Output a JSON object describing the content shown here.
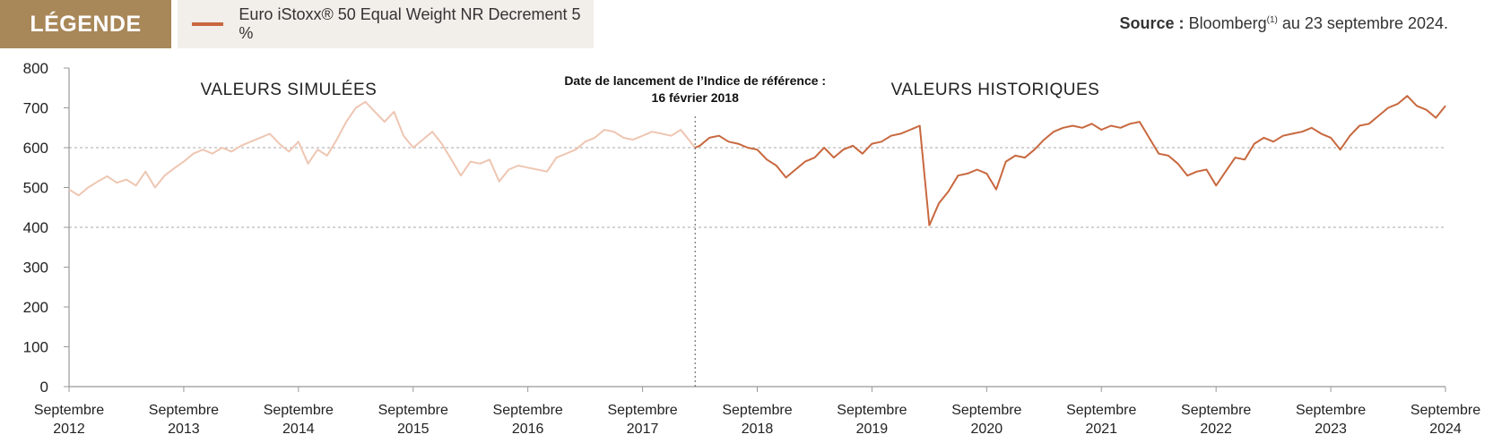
{
  "legend": {
    "heading": "LÉGENDE",
    "series_label": "Euro iStoxx® 50 Equal Weight NR Decrement 5 %"
  },
  "source": {
    "label": "Source :",
    "text": "Bloomberg",
    "sup": "(1)",
    "suffix": " au 23 septembre 2024."
  },
  "colors": {
    "legend_head": "#a88758",
    "historical": "#c8683f",
    "simulated": "#eec6b2",
    "grid": "#aaaaaa"
  },
  "chart_data": {
    "type": "line",
    "title": "",
    "xlabel": "",
    "ylabel": "",
    "ylim": [
      0,
      800
    ],
    "yticks": [
      0,
      100,
      200,
      300,
      400,
      500,
      600,
      700,
      800
    ],
    "grid": "horizontal dashed at 400 and 600",
    "x_range": [
      "2012-09",
      "2024-09"
    ],
    "xticks": [
      {
        "line1": "Septembre",
        "line2": "2012",
        "x": "2012-09"
      },
      {
        "line1": "Septembre",
        "line2": "2013",
        "x": "2013-09"
      },
      {
        "line1": "Septembre",
        "line2": "2014",
        "x": "2014-09"
      },
      {
        "line1": "Septembre",
        "line2": "2015",
        "x": "2015-09"
      },
      {
        "line1": "Septembre",
        "line2": "2016",
        "x": "2016-09"
      },
      {
        "line1": "Septembre",
        "line2": "2017",
        "x": "2017-09"
      },
      {
        "line1": "Septembre",
        "line2": "2018",
        "x": "2018-09"
      },
      {
        "line1": "Septembre",
        "line2": "2019",
        "x": "2019-09"
      },
      {
        "line1": "Septembre",
        "line2": "2020",
        "x": "2020-09"
      },
      {
        "line1": "Septembre",
        "line2": "2021",
        "x": "2021-09"
      },
      {
        "line1": "Septembre",
        "line2": "2022",
        "x": "2022-09"
      },
      {
        "line1": "Septembre",
        "line2": "2023",
        "x": "2023-09"
      },
      {
        "line1": "Septembre",
        "line2": "2024",
        "x": "2024-09"
      }
    ],
    "section_labels": {
      "simulated": "VALEURS SIMULÉES",
      "historical": "VALEURS HISTORIQUES"
    },
    "annotation": {
      "line1": "Date de lancement de l’Indice de référence :",
      "line2": "16 février 2018",
      "x": "2018-02-16"
    },
    "series": [
      {
        "type": "simulated",
        "points": [
          [
            "2012-09",
            495
          ],
          [
            "2012-10",
            480
          ],
          [
            "2012-11",
            500
          ],
          [
            "2012-12",
            515
          ],
          [
            "2013-01",
            528
          ],
          [
            "2013-02",
            512
          ],
          [
            "2013-03",
            520
          ],
          [
            "2013-04",
            505
          ],
          [
            "2013-05",
            540
          ],
          [
            "2013-06",
            500
          ],
          [
            "2013-07",
            530
          ],
          [
            "2013-08",
            548
          ],
          [
            "2013-09",
            565
          ],
          [
            "2013-10",
            585
          ],
          [
            "2013-11",
            595
          ],
          [
            "2013-12",
            585
          ],
          [
            "2014-01",
            600
          ],
          [
            "2014-02",
            590
          ],
          [
            "2014-03",
            605
          ],
          [
            "2014-04",
            615
          ],
          [
            "2014-05",
            625
          ],
          [
            "2014-06",
            635
          ],
          [
            "2014-07",
            610
          ],
          [
            "2014-08",
            590
          ],
          [
            "2014-09",
            615
          ],
          [
            "2014-10",
            560
          ],
          [
            "2014-11",
            595
          ],
          [
            "2014-12",
            580
          ],
          [
            "2015-01",
            620
          ],
          [
            "2015-02",
            665
          ],
          [
            "2015-03",
            700
          ],
          [
            "2015-04",
            715
          ],
          [
            "2015-05",
            690
          ],
          [
            "2015-06",
            665
          ],
          [
            "2015-07",
            690
          ],
          [
            "2015-08",
            630
          ],
          [
            "2015-09",
            600
          ],
          [
            "2015-10",
            620
          ],
          [
            "2015-11",
            640
          ],
          [
            "2015-12",
            610
          ],
          [
            "2016-01",
            570
          ],
          [
            "2016-02",
            530
          ],
          [
            "2016-03",
            565
          ],
          [
            "2016-04",
            560
          ],
          [
            "2016-05",
            570
          ],
          [
            "2016-06",
            515
          ],
          [
            "2016-07",
            545
          ],
          [
            "2016-08",
            555
          ],
          [
            "2016-09",
            550
          ],
          [
            "2016-10",
            545
          ],
          [
            "2016-11",
            540
          ],
          [
            "2016-12",
            575
          ],
          [
            "2017-01",
            585
          ],
          [
            "2017-02",
            595
          ],
          [
            "2017-03",
            615
          ],
          [
            "2017-04",
            625
          ],
          [
            "2017-05",
            645
          ],
          [
            "2017-06",
            640
          ],
          [
            "2017-07",
            625
          ],
          [
            "2017-08",
            620
          ],
          [
            "2017-09",
            630
          ],
          [
            "2017-10",
            640
          ],
          [
            "2017-11",
            635
          ],
          [
            "2017-12",
            630
          ],
          [
            "2018-01",
            645
          ],
          [
            "2018-02-16",
            600
          ]
        ]
      },
      {
        "type": "historical",
        "points": [
          [
            "2018-02-16",
            600
          ],
          [
            "2018-03",
            605
          ],
          [
            "2018-04",
            625
          ],
          [
            "2018-05",
            630
          ],
          [
            "2018-06",
            615
          ],
          [
            "2018-07",
            610
          ],
          [
            "2018-08",
            600
          ],
          [
            "2018-09",
            595
          ],
          [
            "2018-10",
            570
          ],
          [
            "2018-11",
            555
          ],
          [
            "2018-12",
            525
          ],
          [
            "2019-01",
            545
          ],
          [
            "2019-02",
            565
          ],
          [
            "2019-03",
            575
          ],
          [
            "2019-04",
            600
          ],
          [
            "2019-05",
            575
          ],
          [
            "2019-06",
            595
          ],
          [
            "2019-07",
            605
          ],
          [
            "2019-08",
            585
          ],
          [
            "2019-09",
            610
          ],
          [
            "2019-10",
            615
          ],
          [
            "2019-11",
            630
          ],
          [
            "2019-12",
            635
          ],
          [
            "2020-01",
            645
          ],
          [
            "2020-02",
            655
          ],
          [
            "2020-03",
            405
          ],
          [
            "2020-04",
            460
          ],
          [
            "2020-05",
            490
          ],
          [
            "2020-06",
            530
          ],
          [
            "2020-07",
            535
          ],
          [
            "2020-08",
            545
          ],
          [
            "2020-09",
            535
          ],
          [
            "2020-10",
            495
          ],
          [
            "2020-11",
            565
          ],
          [
            "2020-12",
            580
          ],
          [
            "2021-01",
            575
          ],
          [
            "2021-02",
            595
          ],
          [
            "2021-03",
            620
          ],
          [
            "2021-04",
            640
          ],
          [
            "2021-05",
            650
          ],
          [
            "2021-06",
            655
          ],
          [
            "2021-07",
            650
          ],
          [
            "2021-08",
            660
          ],
          [
            "2021-09",
            645
          ],
          [
            "2021-10",
            655
          ],
          [
            "2021-11",
            650
          ],
          [
            "2021-12",
            660
          ],
          [
            "2022-01",
            665
          ],
          [
            "2022-02",
            625
          ],
          [
            "2022-03",
            585
          ],
          [
            "2022-04",
            580
          ],
          [
            "2022-05",
            560
          ],
          [
            "2022-06",
            530
          ],
          [
            "2022-07",
            540
          ],
          [
            "2022-08",
            545
          ],
          [
            "2022-09",
            505
          ],
          [
            "2022-10",
            540
          ],
          [
            "2022-11",
            575
          ],
          [
            "2022-12",
            570
          ],
          [
            "2023-01",
            610
          ],
          [
            "2023-02",
            625
          ],
          [
            "2023-03",
            615
          ],
          [
            "2023-04",
            630
          ],
          [
            "2023-05",
            635
          ],
          [
            "2023-06",
            640
          ],
          [
            "2023-07",
            650
          ],
          [
            "2023-08",
            635
          ],
          [
            "2023-09",
            625
          ],
          [
            "2023-10",
            595
          ],
          [
            "2023-11",
            630
          ],
          [
            "2023-12",
            655
          ],
          [
            "2024-01",
            660
          ],
          [
            "2024-02",
            680
          ],
          [
            "2024-03",
            700
          ],
          [
            "2024-04",
            710
          ],
          [
            "2024-05",
            730
          ],
          [
            "2024-06",
            705
          ],
          [
            "2024-07",
            695
          ],
          [
            "2024-08",
            675
          ],
          [
            "2024-09",
            705
          ]
        ]
      }
    ]
  }
}
